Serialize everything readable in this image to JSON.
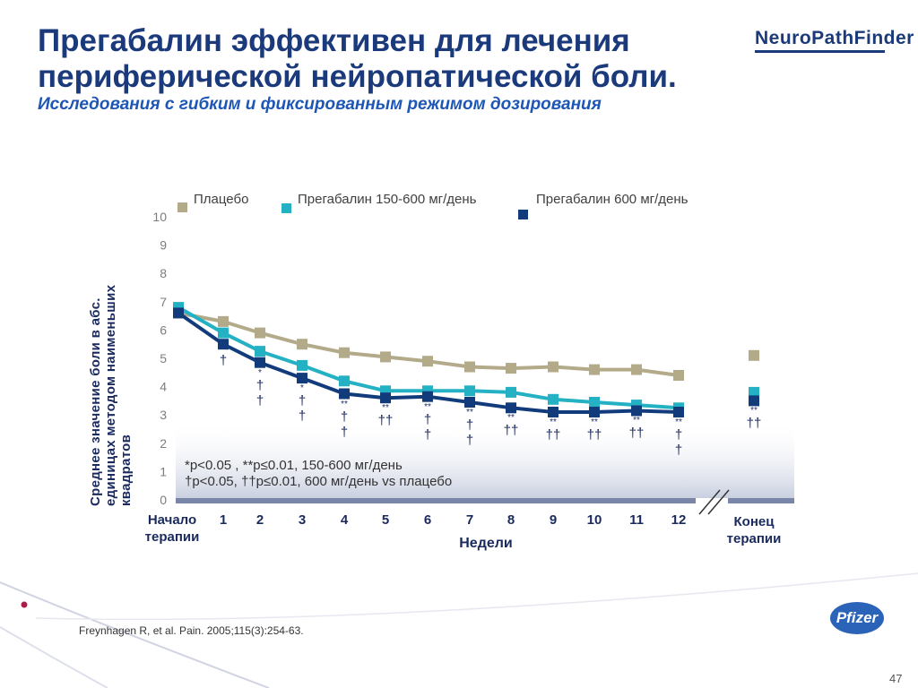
{
  "title": "Прегабалин эффективен для лечения периферической нейропатической боли.",
  "subtitle": "Исследования с гибким и фиксированным режимом  дозирования",
  "logo_text": "NeuroPathFinder",
  "citation": "Freynhagen R, et al. Pain. 2005;115(3):254-63.",
  "page_number": "47",
  "pfizer_logo": "Pfizer",
  "chart_data": {
    "type": "line",
    "title": "",
    "xlabel": "Недели",
    "ylabel": "Среднее  значение  боли в абс. единицах  методом наименьших квадратов",
    "ylim": [
      0,
      10
    ],
    "y_ticks": [
      "0",
      "1",
      "2",
      "3",
      "4",
      "5",
      "6",
      "7",
      "8",
      "9",
      "10"
    ],
    "x_positions": [
      0,
      1,
      2,
      3,
      4,
      5,
      6,
      7,
      8,
      9,
      10,
      11,
      12
    ],
    "x_tick_labels": [
      "Начало терапии",
      "1",
      "2",
      "3",
      "4",
      "5",
      "6",
      "7",
      "8",
      "9",
      "10",
      "11",
      "12"
    ],
    "endpoint_label": "Конец терапии",
    "series": [
      {
        "name": "Плацебо",
        "color": "#b3aa8a",
        "values": [
          6.6,
          6.3,
          5.9,
          5.5,
          5.2,
          5.05,
          4.9,
          4.7,
          4.65,
          4.7,
          4.6,
          4.6,
          4.4
        ],
        "endpoint": 5.1
      },
      {
        "name": "Прегабалин  150-600 мг/день",
        "color": "#25b1c4",
        "values": [
          6.8,
          5.9,
          5.25,
          4.75,
          4.2,
          3.85,
          3.85,
          3.85,
          3.8,
          3.55,
          3.45,
          3.35,
          3.25
        ],
        "endpoint": 3.8
      },
      {
        "name": "Прегабалин  600 мг/день",
        "color": "#123b7c",
        "values": [
          6.6,
          5.5,
          4.85,
          4.3,
          3.75,
          3.6,
          3.65,
          3.45,
          3.25,
          3.1,
          3.1,
          3.15,
          3.1
        ],
        "endpoint": 3.5
      }
    ],
    "significance": [
      {
        "x": 1,
        "star": "",
        "dagger": "†"
      },
      {
        "x": 2,
        "star": "*",
        "dagger": "†\n†"
      },
      {
        "x": 3,
        "star": "*",
        "dagger": "†\n†"
      },
      {
        "x": 4,
        "star": "**",
        "dagger": "†\n†"
      },
      {
        "x": 5,
        "star": "**",
        "dagger": "††"
      },
      {
        "x": 6,
        "star": "**",
        "dagger": "†\n†"
      },
      {
        "x": 7,
        "star": "**",
        "dagger": "†\n†"
      },
      {
        "x": 8,
        "star": "**",
        "dagger": "††"
      },
      {
        "x": 9,
        "star": "**",
        "dagger": "††"
      },
      {
        "x": 10,
        "star": "**",
        "dagger": "††"
      },
      {
        "x": 11,
        "star": "**",
        "dagger": "††"
      },
      {
        "x": 12,
        "star": "**",
        "dagger": "†\n†"
      },
      {
        "x": "end",
        "star": "**",
        "dagger": "††"
      }
    ],
    "footnote_lines": [
      "*p<0.05 , **p≤0.01, 150-600 мг/день",
      "†p<0.05, ††p≤0.01, 600 мг/день vs плацебо"
    ]
  }
}
